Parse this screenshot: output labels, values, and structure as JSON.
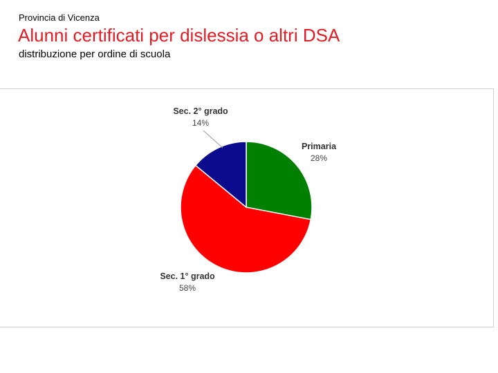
{
  "header": {
    "province": "Provincia di Vicenza",
    "title": "Alunni certificati per dislessia o altri DSA",
    "subtitle": "distribuzione per ordine di scuola"
  },
  "chart_data": {
    "type": "pie",
    "title": "",
    "slices": [
      {
        "name": "Primaria",
        "value": 28,
        "label": "28%",
        "color": "#008000"
      },
      {
        "name": "Sec. 1° grado",
        "value": 58,
        "label": "58%",
        "color": "#ff0000"
      },
      {
        "name": "Sec. 2° grado",
        "value": 14,
        "label": "14%",
        "color": "#0a0a8c"
      }
    ],
    "legend": "none",
    "labels": "outside"
  }
}
